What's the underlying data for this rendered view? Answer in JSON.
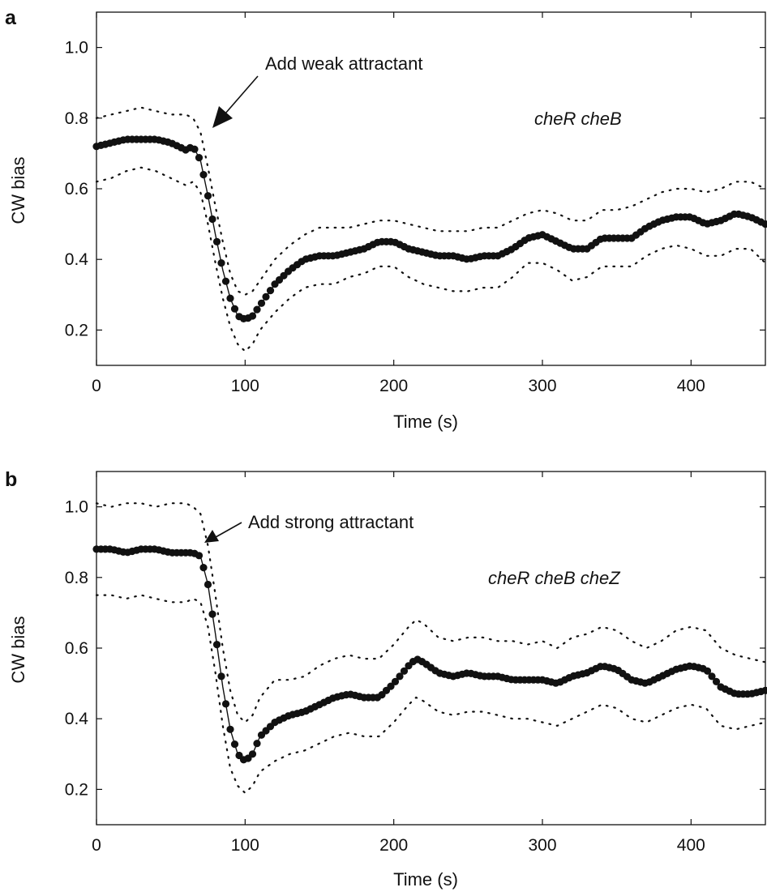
{
  "chart_data": [
    {
      "panel": "a",
      "type": "line",
      "xlabel": "Time (s)",
      "ylabel": "CW bias",
      "xlim": [
        0,
        450
      ],
      "ylim": [
        0.1,
        1.1
      ],
      "xticks": [
        0,
        100,
        200,
        300,
        400
      ],
      "xtick_labels": [
        "0",
        "100",
        "200",
        "300",
        "400"
      ],
      "yticks": [
        0.2,
        0.4,
        0.6,
        0.8,
        1.0
      ],
      "ytick_labels": [
        "0.2",
        "0.4",
        "0.6",
        "0.8",
        "1.0"
      ],
      "grid": false,
      "annotation": {
        "text": "Add weak attractant",
        "x": 77,
        "y": 0.76
      },
      "label": "cheR cheB",
      "series": [
        {
          "style": "solid-markers",
          "x": [
            0,
            10,
            20,
            30,
            40,
            50,
            60,
            65,
            70,
            75,
            80,
            85,
            90,
            95,
            100,
            105,
            110,
            120,
            130,
            140,
            150,
            160,
            170,
            180,
            190,
            200,
            210,
            220,
            230,
            240,
            250,
            260,
            270,
            280,
            290,
            300,
            310,
            320,
            330,
            340,
            350,
            360,
            370,
            380,
            390,
            400,
            410,
            420,
            430,
            440,
            450
          ],
          "y": [
            0.72,
            0.73,
            0.74,
            0.74,
            0.74,
            0.73,
            0.71,
            0.72,
            0.68,
            0.58,
            0.47,
            0.37,
            0.29,
            0.24,
            0.23,
            0.24,
            0.27,
            0.33,
            0.37,
            0.4,
            0.41,
            0.41,
            0.42,
            0.43,
            0.45,
            0.45,
            0.43,
            0.42,
            0.41,
            0.41,
            0.4,
            0.41,
            0.41,
            0.43,
            0.46,
            0.47,
            0.45,
            0.43,
            0.43,
            0.46,
            0.46,
            0.46,
            0.49,
            0.51,
            0.52,
            0.52,
            0.5,
            0.51,
            0.53,
            0.52,
            0.5
          ]
        },
        {
          "style": "dotted",
          "x": [
            0,
            10,
            20,
            30,
            40,
            50,
            60,
            65,
            70,
            75,
            80,
            85,
            90,
            95,
            100,
            105,
            110,
            120,
            130,
            140,
            150,
            160,
            170,
            180,
            190,
            200,
            210,
            220,
            230,
            240,
            250,
            260,
            270,
            280,
            290,
            300,
            310,
            320,
            330,
            340,
            350,
            360,
            370,
            380,
            390,
            400,
            410,
            420,
            430,
            440,
            450
          ],
          "y": [
            0.8,
            0.81,
            0.82,
            0.83,
            0.82,
            0.81,
            0.81,
            0.8,
            0.76,
            0.66,
            0.55,
            0.45,
            0.36,
            0.31,
            0.3,
            0.31,
            0.34,
            0.4,
            0.44,
            0.47,
            0.49,
            0.49,
            0.49,
            0.5,
            0.51,
            0.51,
            0.5,
            0.49,
            0.48,
            0.48,
            0.48,
            0.49,
            0.49,
            0.51,
            0.53,
            0.54,
            0.53,
            0.51,
            0.51,
            0.54,
            0.54,
            0.55,
            0.57,
            0.59,
            0.6,
            0.6,
            0.59,
            0.6,
            0.62,
            0.62,
            0.6
          ]
        },
        {
          "style": "dotted",
          "x": [
            0,
            10,
            20,
            30,
            40,
            50,
            60,
            65,
            70,
            75,
            80,
            85,
            90,
            95,
            100,
            105,
            110,
            120,
            130,
            140,
            150,
            160,
            170,
            180,
            190,
            200,
            210,
            220,
            230,
            240,
            250,
            260,
            270,
            280,
            290,
            300,
            310,
            320,
            330,
            340,
            350,
            360,
            370,
            380,
            390,
            400,
            410,
            420,
            430,
            440,
            450
          ],
          "y": [
            0.62,
            0.63,
            0.65,
            0.66,
            0.65,
            0.63,
            0.61,
            0.62,
            0.59,
            0.5,
            0.39,
            0.29,
            0.21,
            0.16,
            0.14,
            0.16,
            0.2,
            0.25,
            0.29,
            0.32,
            0.33,
            0.33,
            0.35,
            0.36,
            0.38,
            0.38,
            0.35,
            0.33,
            0.32,
            0.31,
            0.31,
            0.32,
            0.32,
            0.35,
            0.39,
            0.39,
            0.37,
            0.34,
            0.35,
            0.38,
            0.38,
            0.38,
            0.41,
            0.43,
            0.44,
            0.43,
            0.41,
            0.41,
            0.43,
            0.43,
            0.39
          ]
        }
      ]
    },
    {
      "panel": "b",
      "type": "line",
      "xlabel": "Time (s)",
      "ylabel": "CW bias",
      "xlim": [
        0,
        450
      ],
      "ylim": [
        0.1,
        1.1
      ],
      "xticks": [
        0,
        100,
        200,
        300,
        400
      ],
      "xtick_labels": [
        "0",
        "100",
        "200",
        "300",
        "400"
      ],
      "yticks": [
        0.2,
        0.4,
        0.6,
        0.8,
        1.0
      ],
      "ytick_labels": [
        "0.2",
        "0.4",
        "0.6",
        "0.8",
        "1.0"
      ],
      "grid": false,
      "annotation": {
        "text": "Add strong attractant",
        "x": 73,
        "y": 0.89
      },
      "label": "cheR cheB cheZ",
      "series": [
        {
          "style": "solid-markers",
          "x": [
            0,
            10,
            20,
            30,
            40,
            50,
            60,
            65,
            70,
            75,
            80,
            85,
            90,
            95,
            100,
            105,
            110,
            120,
            130,
            140,
            150,
            160,
            170,
            180,
            190,
            200,
            210,
            215,
            220,
            230,
            240,
            250,
            260,
            270,
            280,
            290,
            300,
            310,
            320,
            330,
            340,
            350,
            360,
            370,
            380,
            390,
            400,
            410,
            420,
            430,
            440,
            450
          ],
          "y": [
            0.88,
            0.88,
            0.87,
            0.88,
            0.88,
            0.87,
            0.87,
            0.87,
            0.86,
            0.78,
            0.64,
            0.49,
            0.37,
            0.3,
            0.28,
            0.3,
            0.35,
            0.39,
            0.41,
            0.42,
            0.44,
            0.46,
            0.47,
            0.46,
            0.46,
            0.5,
            0.55,
            0.57,
            0.56,
            0.53,
            0.52,
            0.53,
            0.52,
            0.52,
            0.51,
            0.51,
            0.51,
            0.5,
            0.52,
            0.53,
            0.55,
            0.54,
            0.51,
            0.5,
            0.52,
            0.54,
            0.55,
            0.54,
            0.49,
            0.47,
            0.47,
            0.48
          ]
        },
        {
          "style": "dotted",
          "x": [
            0,
            10,
            20,
            30,
            40,
            50,
            60,
            65,
            70,
            75,
            80,
            85,
            90,
            95,
            100,
            105,
            110,
            120,
            130,
            140,
            150,
            160,
            170,
            180,
            190,
            200,
            210,
            215,
            220,
            230,
            240,
            250,
            260,
            270,
            280,
            290,
            300,
            310,
            320,
            330,
            340,
            350,
            360,
            370,
            380,
            390,
            400,
            410,
            420,
            430,
            440,
            450
          ],
          "y": [
            1.01,
            1.0,
            1.01,
            1.01,
            1.0,
            1.01,
            1.01,
            1.0,
            0.98,
            0.89,
            0.75,
            0.6,
            0.48,
            0.41,
            0.39,
            0.41,
            0.46,
            0.51,
            0.51,
            0.52,
            0.55,
            0.57,
            0.58,
            0.57,
            0.57,
            0.61,
            0.66,
            0.68,
            0.67,
            0.63,
            0.62,
            0.63,
            0.63,
            0.62,
            0.62,
            0.61,
            0.62,
            0.6,
            0.63,
            0.64,
            0.66,
            0.65,
            0.62,
            0.6,
            0.62,
            0.65,
            0.66,
            0.65,
            0.6,
            0.58,
            0.57,
            0.56
          ]
        },
        {
          "style": "dotted",
          "x": [
            0,
            10,
            20,
            30,
            40,
            50,
            60,
            65,
            70,
            75,
            80,
            85,
            90,
            95,
            100,
            105,
            110,
            120,
            130,
            140,
            150,
            160,
            170,
            180,
            190,
            200,
            210,
            215,
            220,
            230,
            240,
            250,
            260,
            270,
            280,
            290,
            300,
            310,
            320,
            330,
            340,
            350,
            360,
            370,
            380,
            390,
            400,
            410,
            420,
            430,
            440,
            450
          ],
          "y": [
            0.75,
            0.75,
            0.74,
            0.75,
            0.74,
            0.73,
            0.73,
            0.74,
            0.73,
            0.66,
            0.53,
            0.38,
            0.26,
            0.21,
            0.19,
            0.21,
            0.25,
            0.28,
            0.3,
            0.31,
            0.33,
            0.35,
            0.36,
            0.35,
            0.35,
            0.39,
            0.44,
            0.46,
            0.45,
            0.42,
            0.41,
            0.42,
            0.42,
            0.41,
            0.4,
            0.4,
            0.39,
            0.38,
            0.4,
            0.42,
            0.44,
            0.43,
            0.4,
            0.39,
            0.41,
            0.43,
            0.44,
            0.43,
            0.38,
            0.37,
            0.38,
            0.39
          ]
        }
      ]
    }
  ]
}
